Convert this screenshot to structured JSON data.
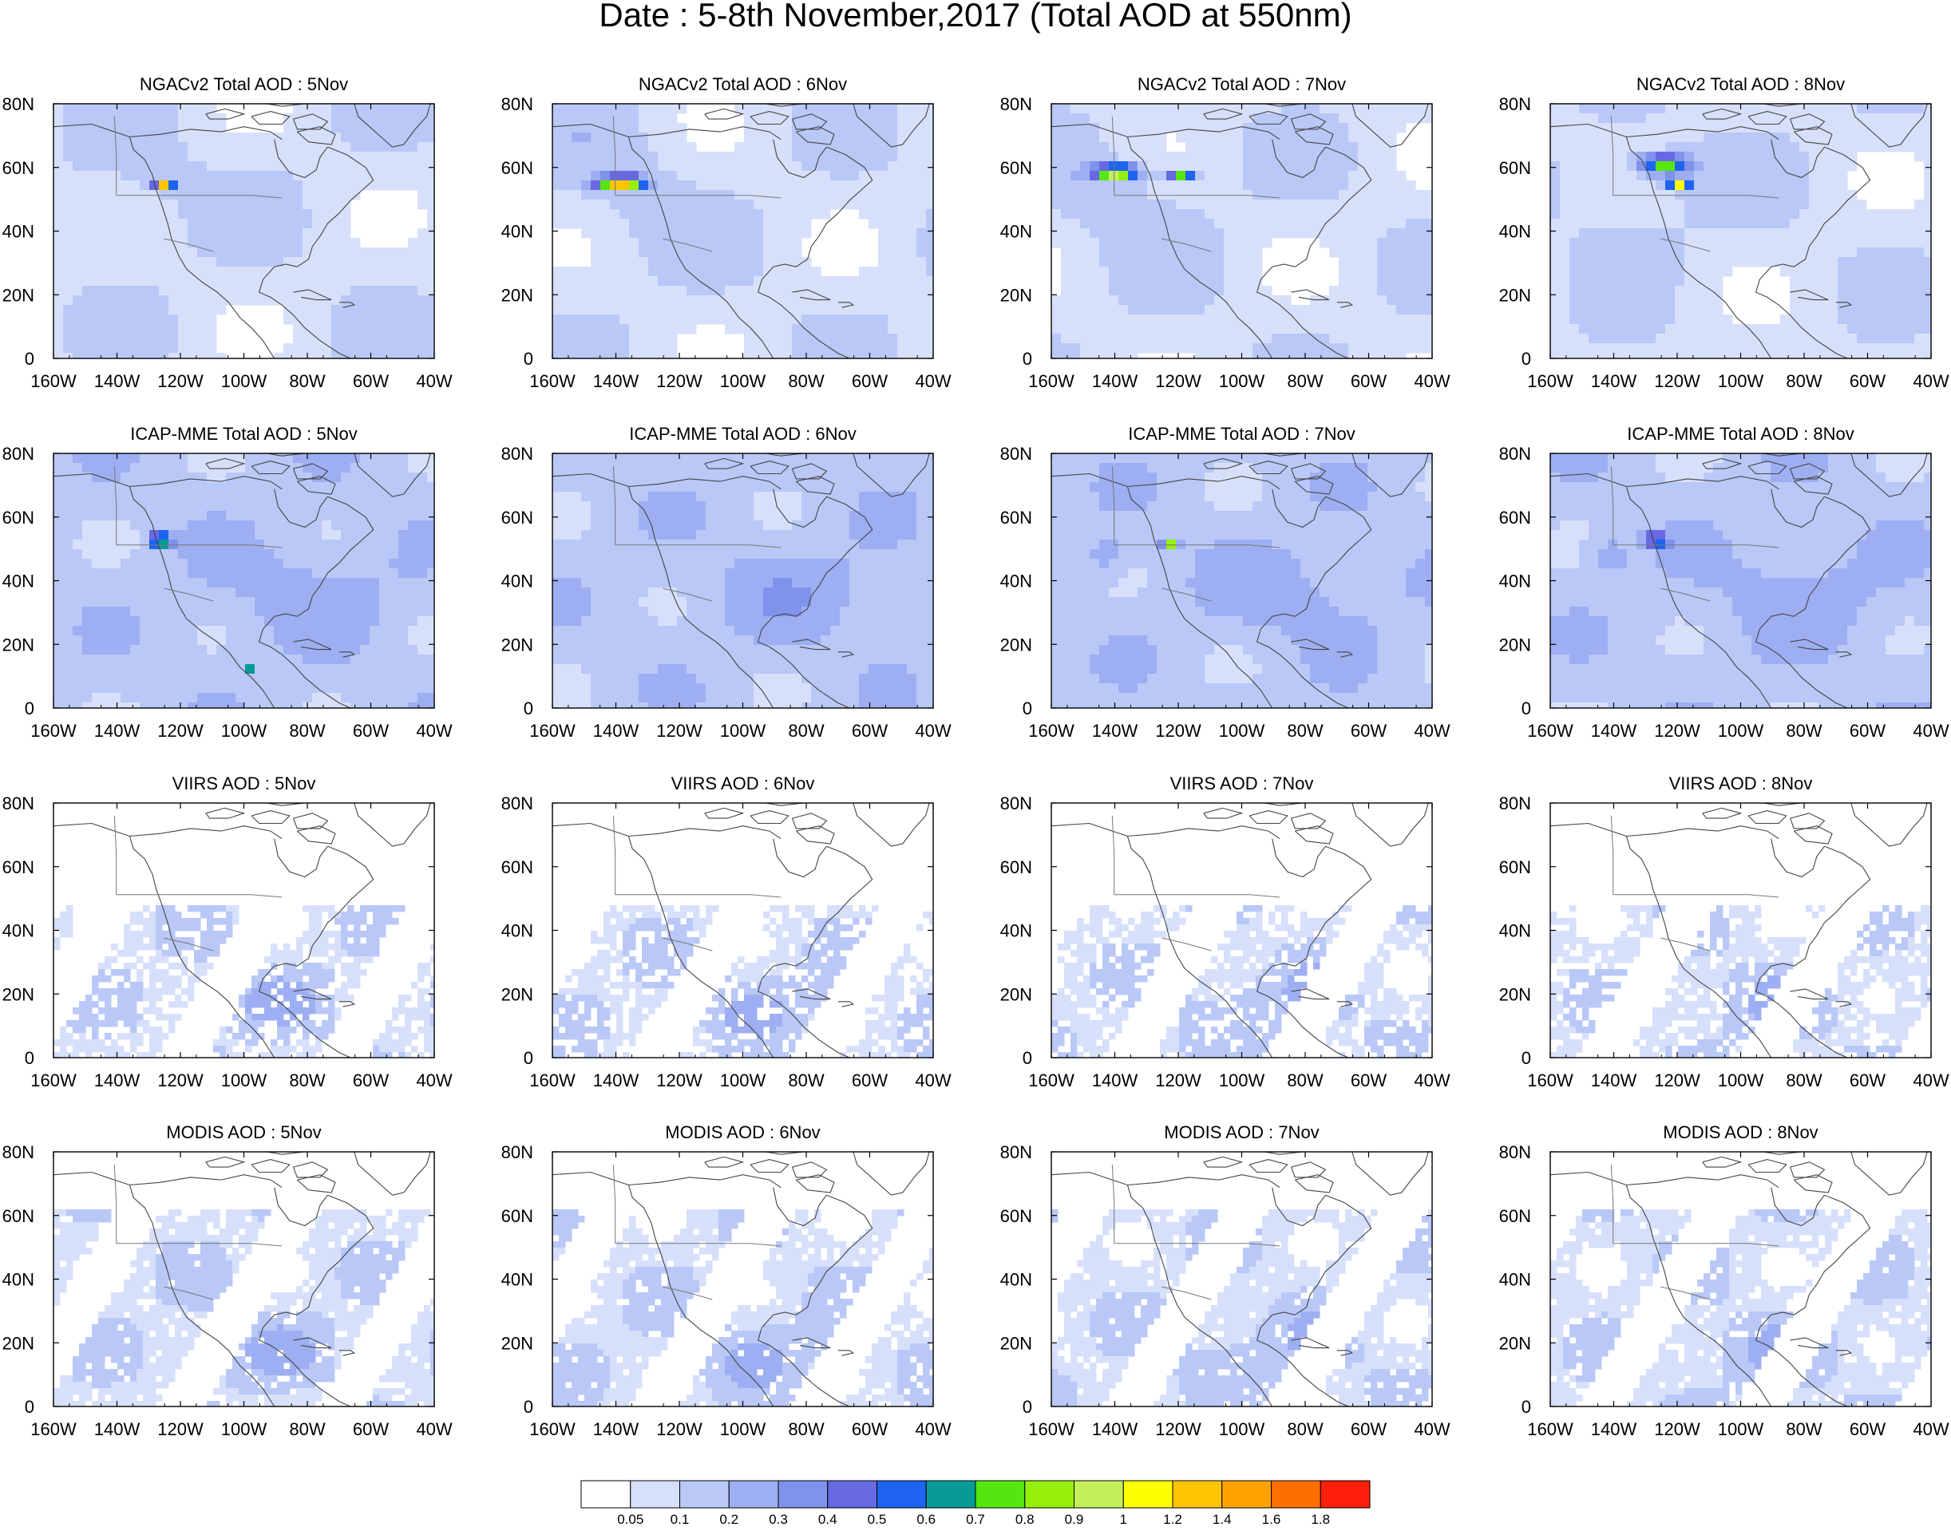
{
  "figure": {
    "title": "Date : 5-8th November,2017 (Total AOD at 550nm)"
  },
  "days": [
    "5Nov",
    "6Nov",
    "7Nov",
    "8Nov"
  ],
  "rows": [
    {
      "id": "ngac",
      "prefix": "NGACv2 Total AOD : ",
      "titles": [
        "NGACv2 Total AOD : 5Nov",
        "NGACv2 Total AOD : 6Nov",
        "NGACv2 Total AOD : 7Nov",
        "NGACv2 Total AOD : 8Nov"
      ]
    },
    {
      "id": "icap",
      "prefix": "ICAP-MME Total AOD : ",
      "titles": [
        "ICAP-MME Total AOD : 5Nov",
        "ICAP-MME Total AOD : 6Nov",
        "ICAP-MME Total AOD : 7Nov",
        "ICAP-MME Total AOD : 8Nov"
      ]
    },
    {
      "id": "viirs",
      "prefix": "VIIRS AOD : ",
      "titles": [
        "VIIRS AOD : 5Nov",
        "VIIRS AOD : 6Nov",
        "VIIRS AOD : 7Nov",
        "VIIRS AOD : 8Nov"
      ]
    },
    {
      "id": "modis",
      "prefix": "MODIS AOD : ",
      "titles": [
        "MODIS AOD : 5Nov",
        "MODIS AOD : 6Nov",
        "MODIS AOD : 7Nov",
        "MODIS AOD : 8Nov"
      ]
    }
  ],
  "axes": {
    "x_ticks": [
      "160W",
      "140W",
      "120W",
      "100W",
      "80W",
      "60W",
      "40W"
    ],
    "y_ticks": [
      "0",
      "20N",
      "40N",
      "60N",
      "80N"
    ],
    "lon_range": [
      -160,
      -40
    ],
    "lat_range": [
      0,
      80
    ]
  },
  "colorbar": {
    "labels": [
      "0.05",
      "0.1",
      "0.2",
      "0.3",
      "0.4",
      "0.5",
      "0.6",
      "0.7",
      "0.8",
      "0.9",
      "1",
      "1.2",
      "1.4",
      "1.6",
      "1.8"
    ],
    "colors": [
      "#ffffff",
      "#d7e0fb",
      "#b9c8f7",
      "#9daff2",
      "#7f92ec",
      "#6769e3",
      "#1e64f0",
      "#089a96",
      "#55e610",
      "#96f00c",
      "#c3f05a",
      "#ffff00",
      "#ffc400",
      "#ffa200",
      "#ff6e00",
      "#ff1e0a"
    ]
  }
}
